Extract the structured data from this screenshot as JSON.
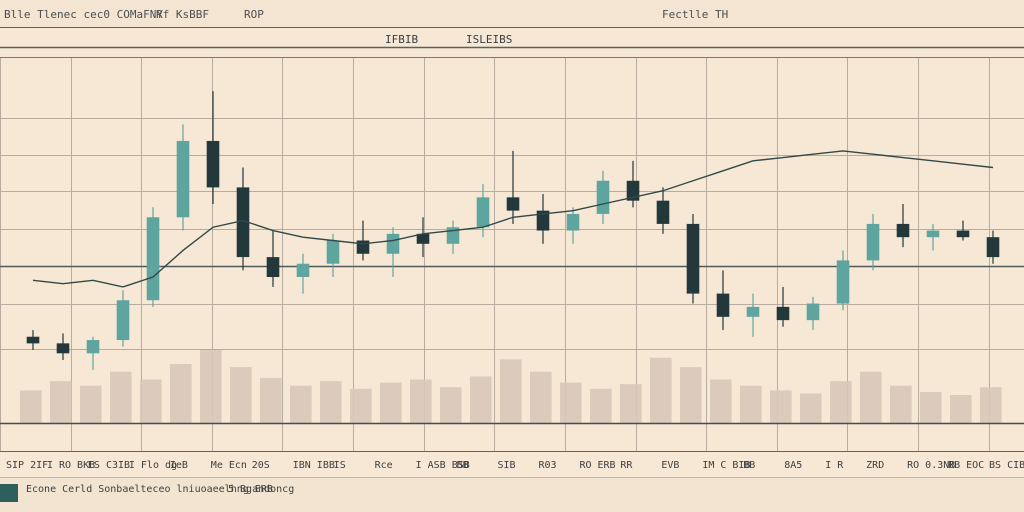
{
  "header": {
    "title_left": "Blle Tlenec cec0 COMaFNY",
    "title_mid": "Rf KsBBF",
    "title_mid2": "ROP",
    "title_right": "Fectlle TH"
  },
  "subheader": {
    "value_a": "IFBIB",
    "value_b": "ISLEIBS"
  },
  "axis": {
    "labels": [
      "SIP  2IF",
      "I RO  BKB",
      "ES  C3IB",
      "I Flo  dg",
      "IeB",
      "Me  Ecn",
      "20S",
      "IBN  IBB",
      "IS",
      "Rce",
      "I ASB  BSB",
      "BB",
      "SIB",
      "R03",
      "RO  ERB",
      "RR",
      "EVB",
      "IM  C BIB",
      "BB",
      "8A5",
      "I R",
      "ZRD",
      "RO  0.3NB",
      "RB  EOC",
      "BS  CIB"
    ]
  },
  "footer": {
    "status_text": "Econe Cerld Sonbaelteceo lniuoaeelhng  ERB",
    "status_text_2": "5 Bgandoncg"
  },
  "colors": {
    "background": "#f6e8d4",
    "up_candle": "#5fa59f",
    "down_candle": "#23383b",
    "volume": "#d9c6b9",
    "grid": "#b8aca0",
    "line": "#33484a"
  },
  "chart_data": {
    "type": "candlestick",
    "candles": [
      {
        "o": 86,
        "h": 88,
        "l": 82,
        "c": 84
      },
      {
        "o": 84,
        "h": 87,
        "l": 79,
        "c": 81
      },
      {
        "o": 81,
        "h": 86,
        "l": 76,
        "c": 85
      },
      {
        "o": 85,
        "h": 100,
        "l": 83,
        "c": 97
      },
      {
        "o": 97,
        "h": 125,
        "l": 95,
        "c": 122
      },
      {
        "o": 122,
        "h": 150,
        "l": 118,
        "c": 145
      },
      {
        "o": 145,
        "h": 160,
        "l": 126,
        "c": 131
      },
      {
        "o": 131,
        "h": 137,
        "l": 106,
        "c": 110
      },
      {
        "o": 110,
        "h": 118,
        "l": 101,
        "c": 104
      },
      {
        "o": 104,
        "h": 111,
        "l": 99,
        "c": 108
      },
      {
        "o": 108,
        "h": 117,
        "l": 104,
        "c": 115
      },
      {
        "o": 115,
        "h": 121,
        "l": 109,
        "c": 111
      },
      {
        "o": 111,
        "h": 119,
        "l": 104,
        "c": 117
      },
      {
        "o": 117,
        "h": 122,
        "l": 110,
        "c": 114
      },
      {
        "o": 114,
        "h": 121,
        "l": 111,
        "c": 119
      },
      {
        "o": 119,
        "h": 132,
        "l": 116,
        "c": 128
      },
      {
        "o": 128,
        "h": 142,
        "l": 120,
        "c": 124
      },
      {
        "o": 124,
        "h": 129,
        "l": 114,
        "c": 118
      },
      {
        "o": 118,
        "h": 125,
        "l": 114,
        "c": 123
      },
      {
        "o": 123,
        "h": 136,
        "l": 120,
        "c": 133
      },
      {
        "o": 133,
        "h": 139,
        "l": 125,
        "c": 127
      },
      {
        "o": 127,
        "h": 131,
        "l": 117,
        "c": 120
      },
      {
        "o": 120,
        "h": 123,
        "l": 96,
        "c": 99
      },
      {
        "o": 99,
        "h": 106,
        "l": 88,
        "c": 92
      },
      {
        "o": 92,
        "h": 99,
        "l": 86,
        "c": 95
      },
      {
        "o": 95,
        "h": 101,
        "l": 89,
        "c": 91
      },
      {
        "o": 91,
        "h": 98,
        "l": 88,
        "c": 96
      },
      {
        "o": 96,
        "h": 112,
        "l": 94,
        "c": 109
      },
      {
        "o": 109,
        "h": 123,
        "l": 106,
        "c": 120
      },
      {
        "o": 120,
        "h": 126,
        "l": 113,
        "c": 116
      },
      {
        "o": 116,
        "h": 120,
        "l": 112,
        "c": 118
      },
      {
        "o": 118,
        "h": 121,
        "l": 115,
        "c": 116
      },
      {
        "o": 116,
        "h": 118,
        "l": 108,
        "c": 110
      }
    ],
    "volume": [
      21,
      27,
      24,
      33,
      28,
      38,
      47,
      36,
      29,
      24,
      27,
      22,
      26,
      28,
      23,
      30,
      41,
      33,
      26,
      22,
      25,
      42,
      36,
      28,
      24,
      21,
      19,
      27,
      33,
      24,
      20,
      18,
      23
    ],
    "moving_average": [
      103,
      102,
      103,
      101,
      104,
      112,
      119,
      121,
      118,
      116,
      115,
      114,
      115,
      117,
      118,
      119,
      122,
      123,
      124,
      126,
      128,
      130,
      133,
      136,
      139,
      140,
      141,
      142,
      141,
      140,
      139,
      138,
      137
    ],
    "ylim": [
      60,
      170
    ],
    "grid": true
  }
}
